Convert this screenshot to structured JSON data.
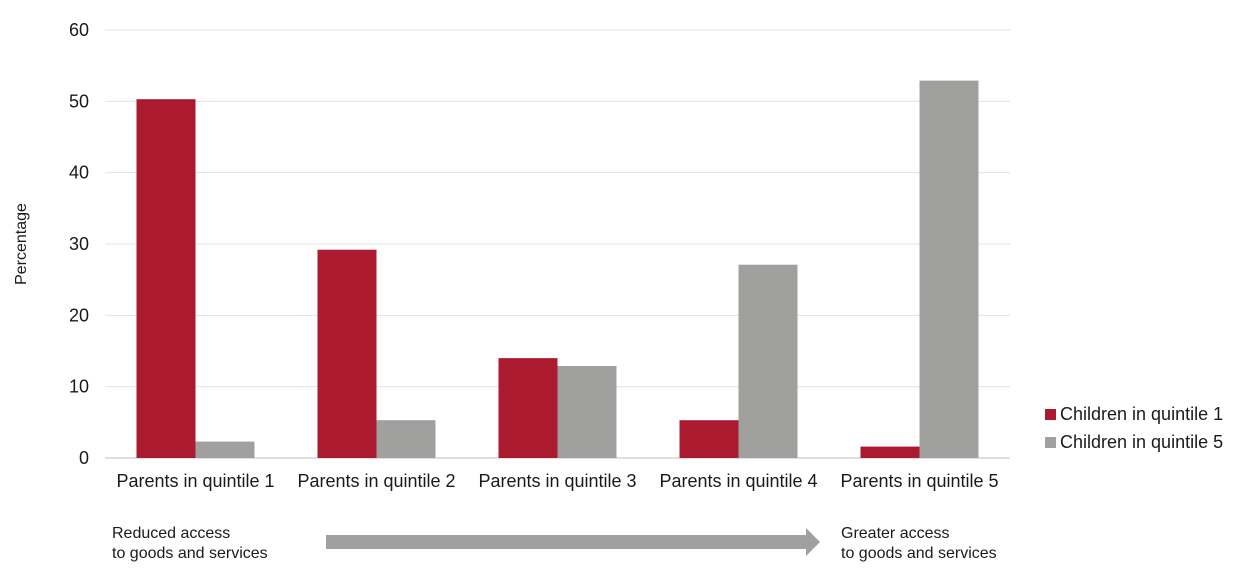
{
  "chart_data": {
    "type": "bar",
    "categories": [
      "Parents in quintile 1",
      "Parents in quintile 2",
      "Parents in quintile 3",
      "Parents in quintile 4",
      "Parents in quintile 5"
    ],
    "series": [
      {
        "name": "Children in quintile 1",
        "values": [
          50.3,
          29.2,
          14.0,
          5.3,
          1.6
        ],
        "color": "#ac1a2f"
      },
      {
        "name": "Children in quintile 5",
        "values": [
          2.3,
          5.3,
          12.9,
          27.1,
          52.9
        ],
        "color": "#a0a09f"
      }
    ],
    "ylabel": "Percentage",
    "xlabel": "",
    "ylim": [
      0,
      60
    ],
    "yticks": [
      0,
      10,
      20,
      30,
      40,
      50,
      60
    ],
    "grid": true,
    "legend_position": "right"
  },
  "annotations": {
    "left_line1": "Reduced access",
    "left_line2": "to goods and services",
    "right_line1": "Greater access",
    "right_line2": "to goods and services",
    "arrow_color": "#a0a09f"
  }
}
